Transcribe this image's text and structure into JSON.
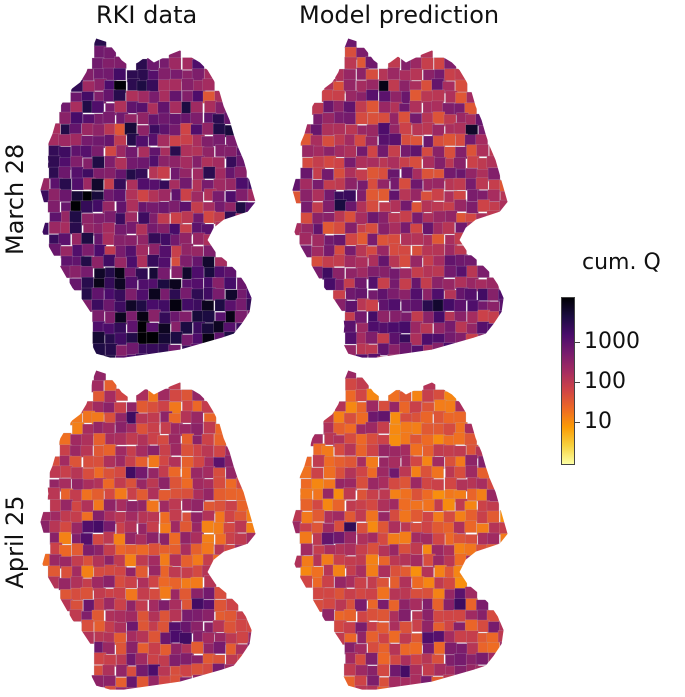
{
  "columns": [
    "RKI data",
    "Model prediction"
  ],
  "rows": [
    "March 28",
    "April 25"
  ],
  "legend": {
    "title": "cum. Q",
    "ticks": [
      "1000",
      "100",
      "10"
    ],
    "colormap": [
      "#fcffa4",
      "#f7d13d",
      "#fb9b06",
      "#ed6925",
      "#cf4446",
      "#a52c60",
      "#781c6d",
      "#4a0c6b",
      "#1b0c41",
      "#000004"
    ]
  },
  "map_style": {
    "country": "Germany",
    "border_color": "#b7a3b8",
    "panels": [
      {
        "name": "rki-march-28",
        "mean_level": 0.72,
        "hotspots": "low-north-central"
      },
      {
        "name": "model-march-28",
        "mean_level": 0.55,
        "hotspots": "cities-dark"
      },
      {
        "name": "rki-april-25",
        "mean_level": 0.45,
        "hotspots": "cities-dark"
      },
      {
        "name": "model-april-25",
        "mean_level": 0.42,
        "hotspots": "cities-dark"
      }
    ]
  }
}
